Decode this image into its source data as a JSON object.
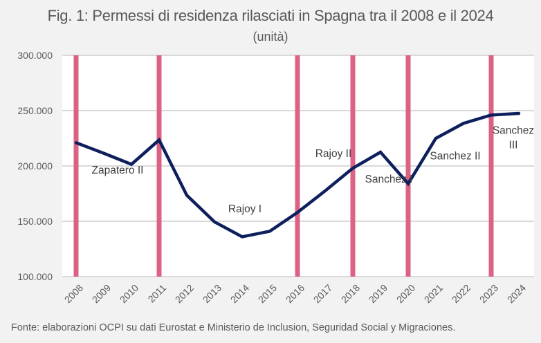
{
  "chart_data": {
    "type": "line",
    "title": "Fig. 1: Permessi di residenza rilasciati in Spagna tra il 2008 e il 2024",
    "subtitle": "(unità)",
    "xlabel": "",
    "ylabel": "",
    "x": [
      "2008",
      "2009",
      "2010",
      "2011",
      "2012",
      "2013",
      "2014",
      "2015",
      "2016",
      "2017",
      "2018",
      "2019",
      "2020",
      "2021",
      "2022",
      "2023",
      "2024"
    ],
    "series": [
      {
        "name": "Permessi di residenza",
        "color": "#0d1f5c",
        "values": [
          221000,
          211500,
          201500,
          223500,
          173500,
          149500,
          136000,
          141000,
          158000,
          177500,
          198000,
          212500,
          184000,
          225000,
          238500,
          246000,
          247500
        ]
      }
    ],
    "ylim": [
      100000,
      300000
    ],
    "yticks": [
      100000,
      150000,
      200000,
      250000,
      300000
    ],
    "ytick_labels": [
      "100.000",
      "150.000",
      "200.000",
      "250.000",
      "300.000"
    ],
    "grid": true,
    "markers": {
      "color": "#dc6285",
      "years": [
        "2008",
        "2011",
        "2016",
        "2018",
        "2020",
        "2023"
      ]
    },
    "annotations": [
      {
        "text": "Zapatero II",
        "x": "2009.5",
        "y": 193000
      },
      {
        "text": "Rajoy I",
        "x": "2014.1",
        "y": 158000
      },
      {
        "text": "Rajoy II",
        "x": "2017.3",
        "y": 208000
      },
      {
        "text": "Sanchez I",
        "x": "2019.3",
        "y": 185000
      },
      {
        "text": "Sanchez II",
        "x": "2021.7",
        "y": 206000
      },
      {
        "text": "Sanchez",
        "x": "2023.8",
        "y": 229000
      },
      {
        "text": "III",
        "x": "2023.8",
        "y": 216000
      }
    ],
    "source": "Fonte: elaborazioni OCPI su dati Eurostat e Ministerio de Inclusion, Seguridad Social y Migraciones."
  }
}
